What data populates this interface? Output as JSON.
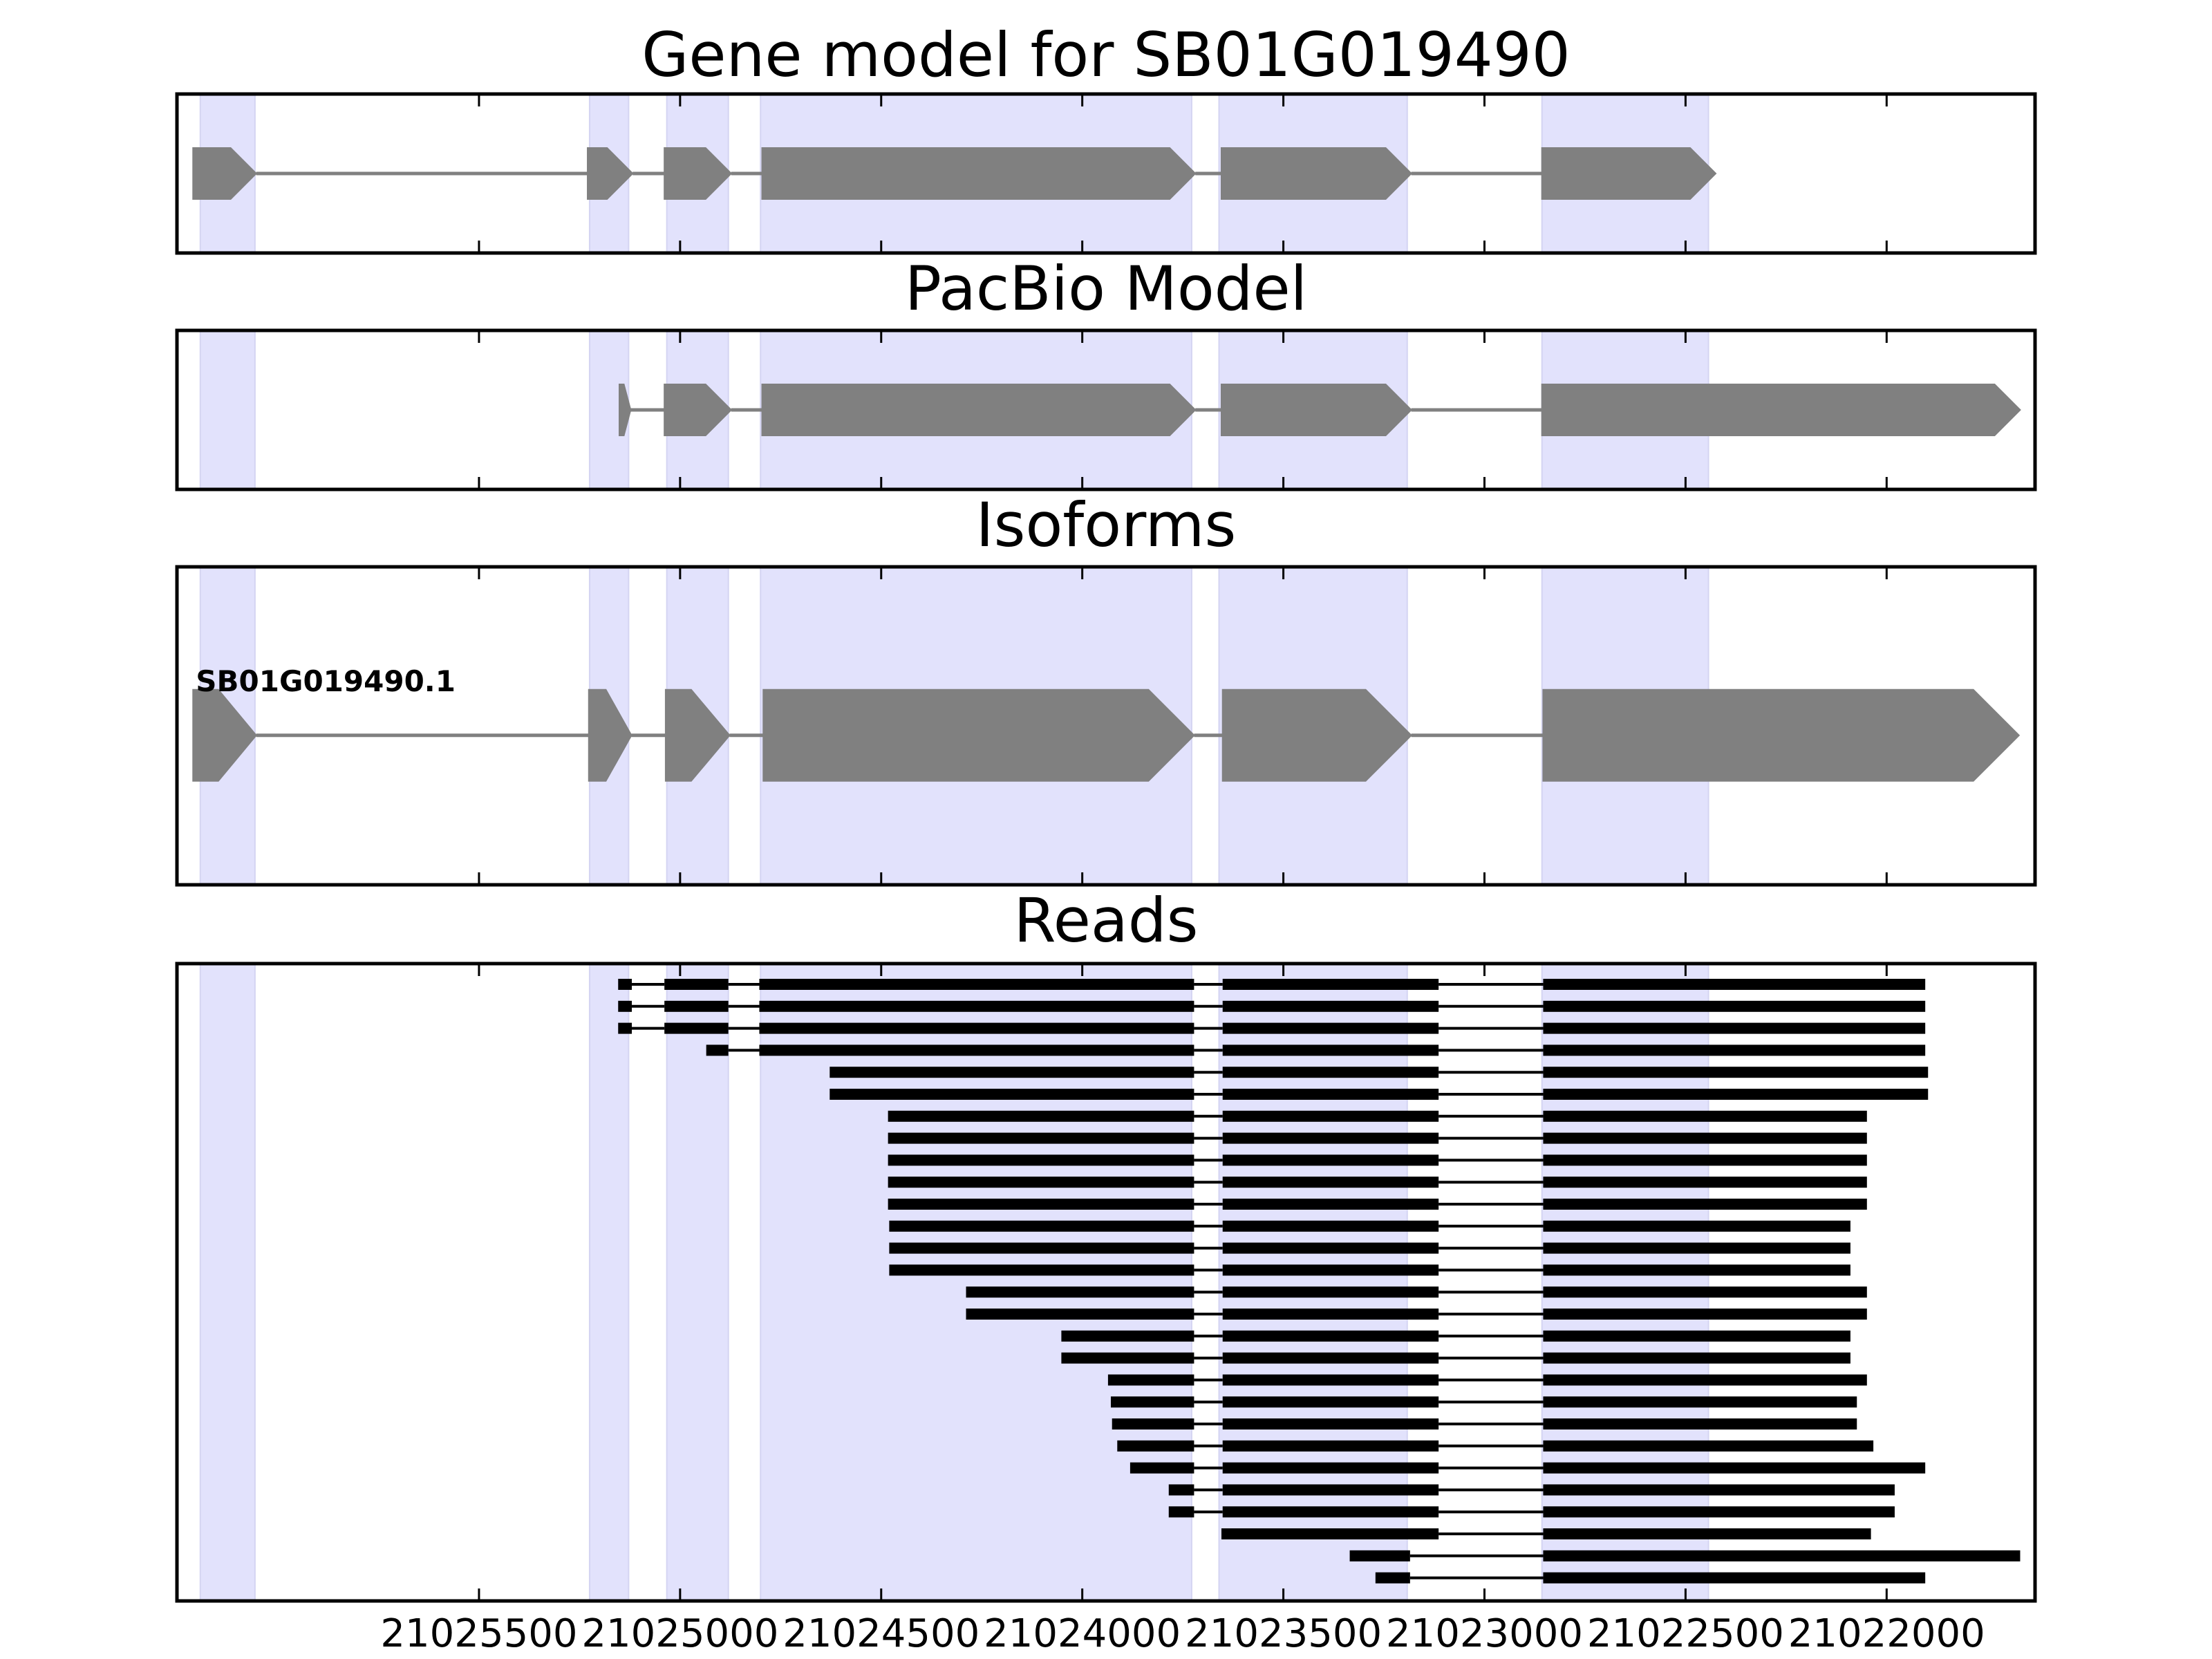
{
  "chart_data": {
    "type": "gene-track",
    "x_axis": {
      "reversed": true,
      "xlim": [
        21026251,
        21021631
      ],
      "ticks": [
        21025500,
        21025000,
        21024500,
        21024000,
        21023500,
        21023000,
        21022500,
        21022000
      ],
      "tick_labels": [
        "21025500",
        "21025000",
        "21024500",
        "21024000",
        "21023500",
        "21023000",
        "21022500",
        "21022000"
      ]
    },
    "highlight_regions": [
      [
        21026193,
        21026057
      ],
      [
        21025225,
        21025128
      ],
      [
        21025033,
        21024880
      ],
      [
        21024800,
        21023728
      ],
      [
        21023660,
        21023192
      ],
      [
        21022857,
        21022443
      ]
    ],
    "colors": {
      "feature": "#808080",
      "intron": "#808080",
      "highlight": "#e2e2fc",
      "read": "#000000"
    },
    "panels": [
      {
        "title": "Gene model for SB01G019490",
        "track": "gene_model",
        "exons": [
          [
            21026211,
            21026054
          ],
          [
            21025230,
            21025118
          ],
          [
            21025039,
            21024873
          ],
          [
            21024796,
            21023719
          ],
          [
            21023654,
            21023182
          ],
          [
            21022857,
            21022425
          ]
        ]
      },
      {
        "title": "PacBio Model",
        "track": "pacbio",
        "exons": [
          [
            21025151,
            21025123
          ],
          [
            21025039,
            21024873
          ],
          [
            21024796,
            21023719
          ],
          [
            21023654,
            21023182
          ],
          [
            21022857,
            21021668
          ]
        ]
      },
      {
        "title": "Isoforms",
        "track": "isoforms",
        "isoforms": [
          {
            "label": "SB01G019490.1",
            "exons": [
              [
                21026211,
                21026054
              ],
              [
                21025227,
                21025121
              ],
              [
                21025036,
                21024877
              ],
              [
                21024793,
                21023722
              ],
              [
                21023651,
                21023182
              ],
              [
                21022854,
                21021671
              ]
            ]
          }
        ]
      },
      {
        "title": "Reads",
        "track": "reads",
        "reads": [
          [
            [
              21025154,
              21025120
            ],
            [
              21025039,
              21024880
            ],
            [
              21024803,
              21023722
            ],
            [
              21023651,
              21023114
            ],
            [
              21022854,
              21021904
            ]
          ],
          [
            [
              21025154,
              21025120
            ],
            [
              21025039,
              21024880
            ],
            [
              21024803,
              21023722
            ],
            [
              21023651,
              21023114
            ],
            [
              21022854,
              21021904
            ]
          ],
          [
            [
              21025154,
              21025120
            ],
            [
              21025039,
              21024880
            ],
            [
              21024803,
              21023722
            ],
            [
              21023651,
              21023114
            ],
            [
              21022854,
              21021904
            ]
          ],
          [
            [
              21024935,
              21024880
            ],
            [
              21024803,
              21023722
            ],
            [
              21023651,
              21023114
            ],
            [
              21022854,
              21021904
            ]
          ],
          [
            [
              21024628,
              21023722
            ],
            [
              21023651,
              21023114
            ],
            [
              21022854,
              21021897
            ]
          ],
          [
            [
              21024628,
              21023722
            ],
            [
              21023651,
              21023114
            ],
            [
              21022854,
              21021897
            ]
          ],
          [
            [
              21024483,
              21023722
            ],
            [
              21023651,
              21023114
            ],
            [
              21022854,
              21022049
            ]
          ],
          [
            [
              21024483,
              21023722
            ],
            [
              21023651,
              21023114
            ],
            [
              21022854,
              21022049
            ]
          ],
          [
            [
              21024483,
              21023722
            ],
            [
              21023651,
              21023114
            ],
            [
              21022854,
              21022049
            ]
          ],
          [
            [
              21024483,
              21023722
            ],
            [
              21023651,
              21023114
            ],
            [
              21022854,
              21022049
            ]
          ],
          [
            [
              21024483,
              21023722
            ],
            [
              21023651,
              21023114
            ],
            [
              21022854,
              21022049
            ]
          ],
          [
            [
              21024480,
              21023722
            ],
            [
              21023651,
              21023114
            ],
            [
              21022854,
              21022090
            ]
          ],
          [
            [
              21024480,
              21023722
            ],
            [
              21023651,
              21023114
            ],
            [
              21022854,
              21022090
            ]
          ],
          [
            [
              21024480,
              21023722
            ],
            [
              21023651,
              21023114
            ],
            [
              21022854,
              21022090
            ]
          ],
          [
            [
              21024289,
              21023722
            ],
            [
              21023651,
              21023114
            ],
            [
              21022854,
              21022049
            ]
          ],
          [
            [
              21024289,
              21023722
            ],
            [
              21023651,
              21023114
            ],
            [
              21022854,
              21022049
            ]
          ],
          [
            [
              21024052,
              21023722
            ],
            [
              21023651,
              21023114
            ],
            [
              21022854,
              21022090
            ]
          ],
          [
            [
              21024052,
              21023722
            ],
            [
              21023651,
              21023114
            ],
            [
              21022854,
              21022090
            ]
          ],
          [
            [
              21023936,
              21023722
            ],
            [
              21023651,
              21023114
            ],
            [
              21022854,
              21022049
            ]
          ],
          [
            [
              21023929,
              21023722
            ],
            [
              21023651,
              21023114
            ],
            [
              21022854,
              21022074
            ]
          ],
          [
            [
              21023926,
              21023722
            ],
            [
              21023651,
              21023114
            ],
            [
              21022854,
              21022074
            ]
          ],
          [
            [
              21023913,
              21023722
            ],
            [
              21023651,
              21023114
            ],
            [
              21022854,
              21022033
            ]
          ],
          [
            [
              21023881,
              21023722
            ],
            [
              21023651,
              21023114
            ],
            [
              21022854,
              21021904
            ]
          ],
          [
            [
              21023785,
              21023722
            ],
            [
              21023651,
              21023114
            ],
            [
              21022854,
              21021980
            ]
          ],
          [
            [
              21023785,
              21023722
            ],
            [
              21023651,
              21023114
            ],
            [
              21022854,
              21021980
            ]
          ],
          [
            [
              21023654,
              21023114
            ],
            [
              21022854,
              21022039
            ]
          ],
          [
            [
              21023335,
              21023185
            ],
            [
              21022854,
              21021668
            ]
          ],
          [
            [
              21023271,
              21023185
            ],
            [
              21022854,
              21021904
            ]
          ]
        ]
      }
    ]
  }
}
